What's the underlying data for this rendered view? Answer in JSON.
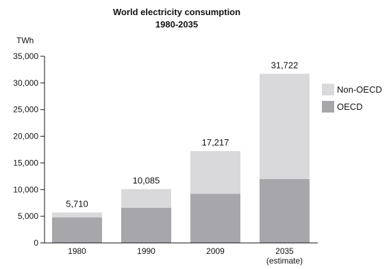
{
  "chart_data": {
    "type": "bar",
    "stacked": true,
    "title": "World electricity consumption",
    "subtitle": "1980-2035",
    "ylabel": "TWh",
    "xlabel": "",
    "categories": [
      "1980",
      "1990",
      "2009",
      "2035"
    ],
    "category_notes": [
      "",
      "",
      "",
      "(estimate)"
    ],
    "ylim": [
      0,
      35000
    ],
    "yticks": [
      0,
      5000,
      10000,
      15000,
      20000,
      25000,
      30000,
      35000
    ],
    "ytick_labels": [
      "0",
      "5,000",
      "10,000",
      "15,000",
      "20,000",
      "25,000",
      "30,000",
      "35,000"
    ],
    "series": [
      {
        "name": "OECD",
        "values": [
          4800,
          6600,
          9200,
          12000
        ],
        "color": "#a7a7ab"
      },
      {
        "name": "Non-OECD",
        "values": [
          910,
          3485,
          8017,
          19722
        ],
        "color": "#d9d9db"
      }
    ],
    "totals": [
      5710,
      10085,
      17217,
      31722
    ],
    "total_labels": [
      "5,710",
      "10,085",
      "17,217",
      "31,722"
    ],
    "legend": {
      "position": "right",
      "order": [
        "Non-OECD",
        "OECD"
      ]
    },
    "grid": false
  }
}
